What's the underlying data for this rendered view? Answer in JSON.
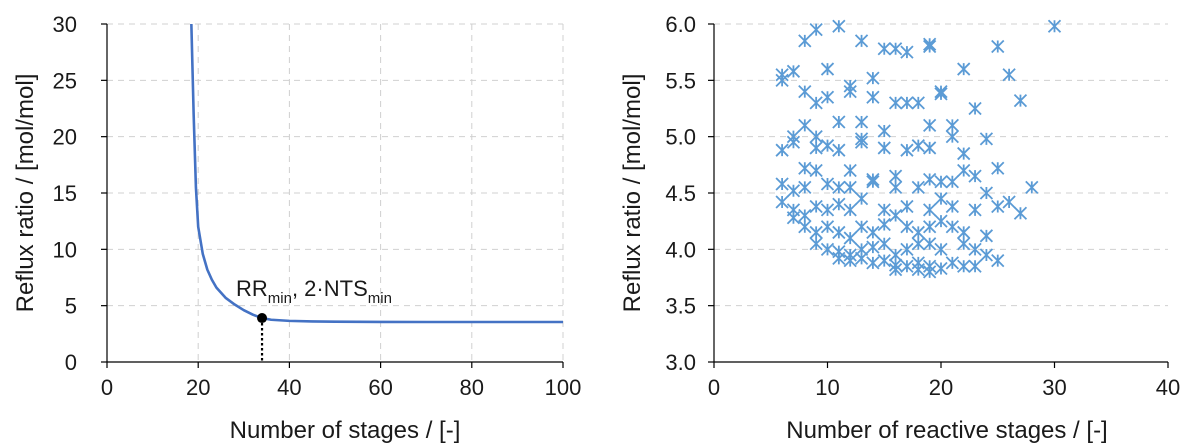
{
  "chart_data": [
    {
      "type": "line",
      "xlabel": "Number of stages / [-]",
      "ylabel": "Reflux ratio / [mol/mol]",
      "xlim": [
        0,
        100
      ],
      "ylim": [
        0,
        30
      ],
      "xticks": [
        0,
        20,
        40,
        60,
        80,
        100
      ],
      "yticks": [
        0,
        5,
        10,
        15,
        20,
        25,
        30
      ],
      "grid": true,
      "series": [
        {
          "color": "#4472C4",
          "x": [
            18.5,
            19,
            19.5,
            20,
            21,
            22,
            23,
            24,
            26,
            28,
            30,
            32,
            34,
            36,
            40,
            45,
            50,
            60,
            70,
            80,
            90,
            100
          ],
          "y": [
            30,
            22,
            15.5,
            12,
            9.6,
            8.2,
            7.3,
            6.6,
            5.7,
            5.1,
            4.6,
            4.2,
            3.9,
            3.75,
            3.65,
            3.6,
            3.58,
            3.56,
            3.55,
            3.55,
            3.55,
            3.55
          ]
        }
      ],
      "annotation": {
        "point": [
          34,
          3.9
        ],
        "label_main": "RR",
        "label_sub1": "min",
        "label_sep": ", 2·NTS",
        "label_sub2": "min"
      }
    },
    {
      "type": "scatter",
      "xlabel": "Number of reactive stages / [-]",
      "ylabel": "Reflux ratio / [mol/mol]",
      "xlim": [
        0,
        40
      ],
      "ylim": [
        3.0,
        6.0
      ],
      "xticks": [
        0,
        10,
        20,
        30,
        40
      ],
      "yticks": [
        "3.0",
        "3.5",
        "4.0",
        "4.5",
        "5.0",
        "5.5",
        "6.0"
      ],
      "grid": true,
      "marker": "asterisk",
      "color": "#5B9BD5",
      "points": [
        [
          6,
          5.55
        ],
        [
          6,
          5.5
        ],
        [
          7,
          5.58
        ],
        [
          8,
          5.85
        ],
        [
          9,
          5.95
        ],
        [
          11,
          5.98
        ],
        [
          13,
          5.85
        ],
        [
          15,
          5.78
        ],
        [
          16,
          5.78
        ],
        [
          17,
          5.75
        ],
        [
          19,
          5.82
        ],
        [
          19,
          5.8
        ],
        [
          25,
          5.8
        ],
        [
          30,
          5.98
        ],
        [
          10,
          5.6
        ],
        [
          8,
          5.4
        ],
        [
          9,
          5.3
        ],
        [
          10,
          5.35
        ],
        [
          12,
          5.45
        ],
        [
          12,
          5.4
        ],
        [
          14,
          5.52
        ],
        [
          14,
          5.35
        ],
        [
          16,
          5.3
        ],
        [
          17,
          5.3
        ],
        [
          18,
          5.3
        ],
        [
          20,
          5.4
        ],
        [
          20,
          5.38
        ],
        [
          22,
          5.6
        ],
        [
          23,
          5.25
        ],
        [
          26,
          5.55
        ],
        [
          27,
          5.32
        ],
        [
          11,
          5.13
        ],
        [
          9,
          5.0
        ],
        [
          7,
          5.0
        ],
        [
          8,
          5.1
        ],
        [
          13,
          5.13
        ],
        [
          15,
          5.05
        ],
        [
          19,
          5.1
        ],
        [
          21,
          5.1
        ],
        [
          21,
          5.0
        ],
        [
          24,
          4.98
        ],
        [
          6,
          4.88
        ],
        [
          7,
          4.95
        ],
        [
          9,
          4.9
        ],
        [
          10,
          4.92
        ],
        [
          11,
          4.88
        ],
        [
          13,
          4.98
        ],
        [
          13,
          4.95
        ],
        [
          15,
          4.9
        ],
        [
          17,
          4.88
        ],
        [
          18,
          4.92
        ],
        [
          19,
          4.9
        ],
        [
          22,
          4.85
        ],
        [
          25,
          4.72
        ],
        [
          8,
          4.72
        ],
        [
          9,
          4.7
        ],
        [
          10,
          4.58
        ],
        [
          11,
          4.55
        ],
        [
          12,
          4.7
        ],
        [
          12,
          4.55
        ],
        [
          14,
          4.62
        ],
        [
          14,
          4.6
        ],
        [
          16,
          4.65
        ],
        [
          16,
          4.55
        ],
        [
          18,
          4.55
        ],
        [
          19,
          4.62
        ],
        [
          20,
          4.6
        ],
        [
          21,
          4.6
        ],
        [
          22,
          4.7
        ],
        [
          23,
          4.65
        ],
        [
          26,
          4.42
        ],
        [
          28,
          4.55
        ],
        [
          6,
          4.58
        ],
        [
          7,
          4.52
        ],
        [
          8,
          4.55
        ],
        [
          6,
          4.42
        ],
        [
          7,
          4.35
        ],
        [
          8,
          4.3
        ],
        [
          9,
          4.38
        ],
        [
          10,
          4.35
        ],
        [
          11,
          4.4
        ],
        [
          12,
          4.35
        ],
        [
          13,
          4.45
        ],
        [
          15,
          4.35
        ],
        [
          17,
          4.38
        ],
        [
          19,
          4.35
        ],
        [
          20,
          4.45
        ],
        [
          21,
          4.38
        ],
        [
          23,
          4.35
        ],
        [
          24,
          4.5
        ],
        [
          25,
          4.38
        ],
        [
          27,
          4.32
        ],
        [
          7,
          4.28
        ],
        [
          8,
          4.2
        ],
        [
          9,
          4.15
        ],
        [
          10,
          4.2
        ],
        [
          11,
          4.15
        ],
        [
          12,
          4.1
        ],
        [
          13,
          4.2
        ],
        [
          14,
          4.15
        ],
        [
          15,
          4.22
        ],
        [
          16,
          4.3
        ],
        [
          17,
          4.2
        ],
        [
          18,
          4.15
        ],
        [
          19,
          4.2
        ],
        [
          20,
          4.25
        ],
        [
          21,
          4.2
        ],
        [
          22,
          4.15
        ],
        [
          24,
          4.12
        ],
        [
          9,
          4.05
        ],
        [
          10,
          4.0
        ],
        [
          11,
          3.98
        ],
        [
          12,
          3.95
        ],
        [
          13,
          4.0
        ],
        [
          14,
          4.02
        ],
        [
          15,
          4.05
        ],
        [
          16,
          3.95
        ],
        [
          17,
          4.0
        ],
        [
          18,
          4.05
        ],
        [
          19,
          4.05
        ],
        [
          20,
          4.0
        ],
        [
          22,
          4.05
        ],
        [
          23,
          4.0
        ],
        [
          24,
          3.95
        ],
        [
          11,
          3.92
        ],
        [
          12,
          3.9
        ],
        [
          13,
          3.92
        ],
        [
          14,
          3.88
        ],
        [
          15,
          3.9
        ],
        [
          16,
          3.86
        ],
        [
          17,
          3.85
        ],
        [
          18,
          3.88
        ],
        [
          19,
          3.85
        ],
        [
          20,
          3.83
        ],
        [
          21,
          3.88
        ],
        [
          22,
          3.85
        ],
        [
          23,
          3.85
        ],
        [
          25,
          3.9
        ],
        [
          16,
          3.82
        ],
        [
          18,
          3.82
        ],
        [
          19,
          3.8
        ]
      ]
    }
  ]
}
